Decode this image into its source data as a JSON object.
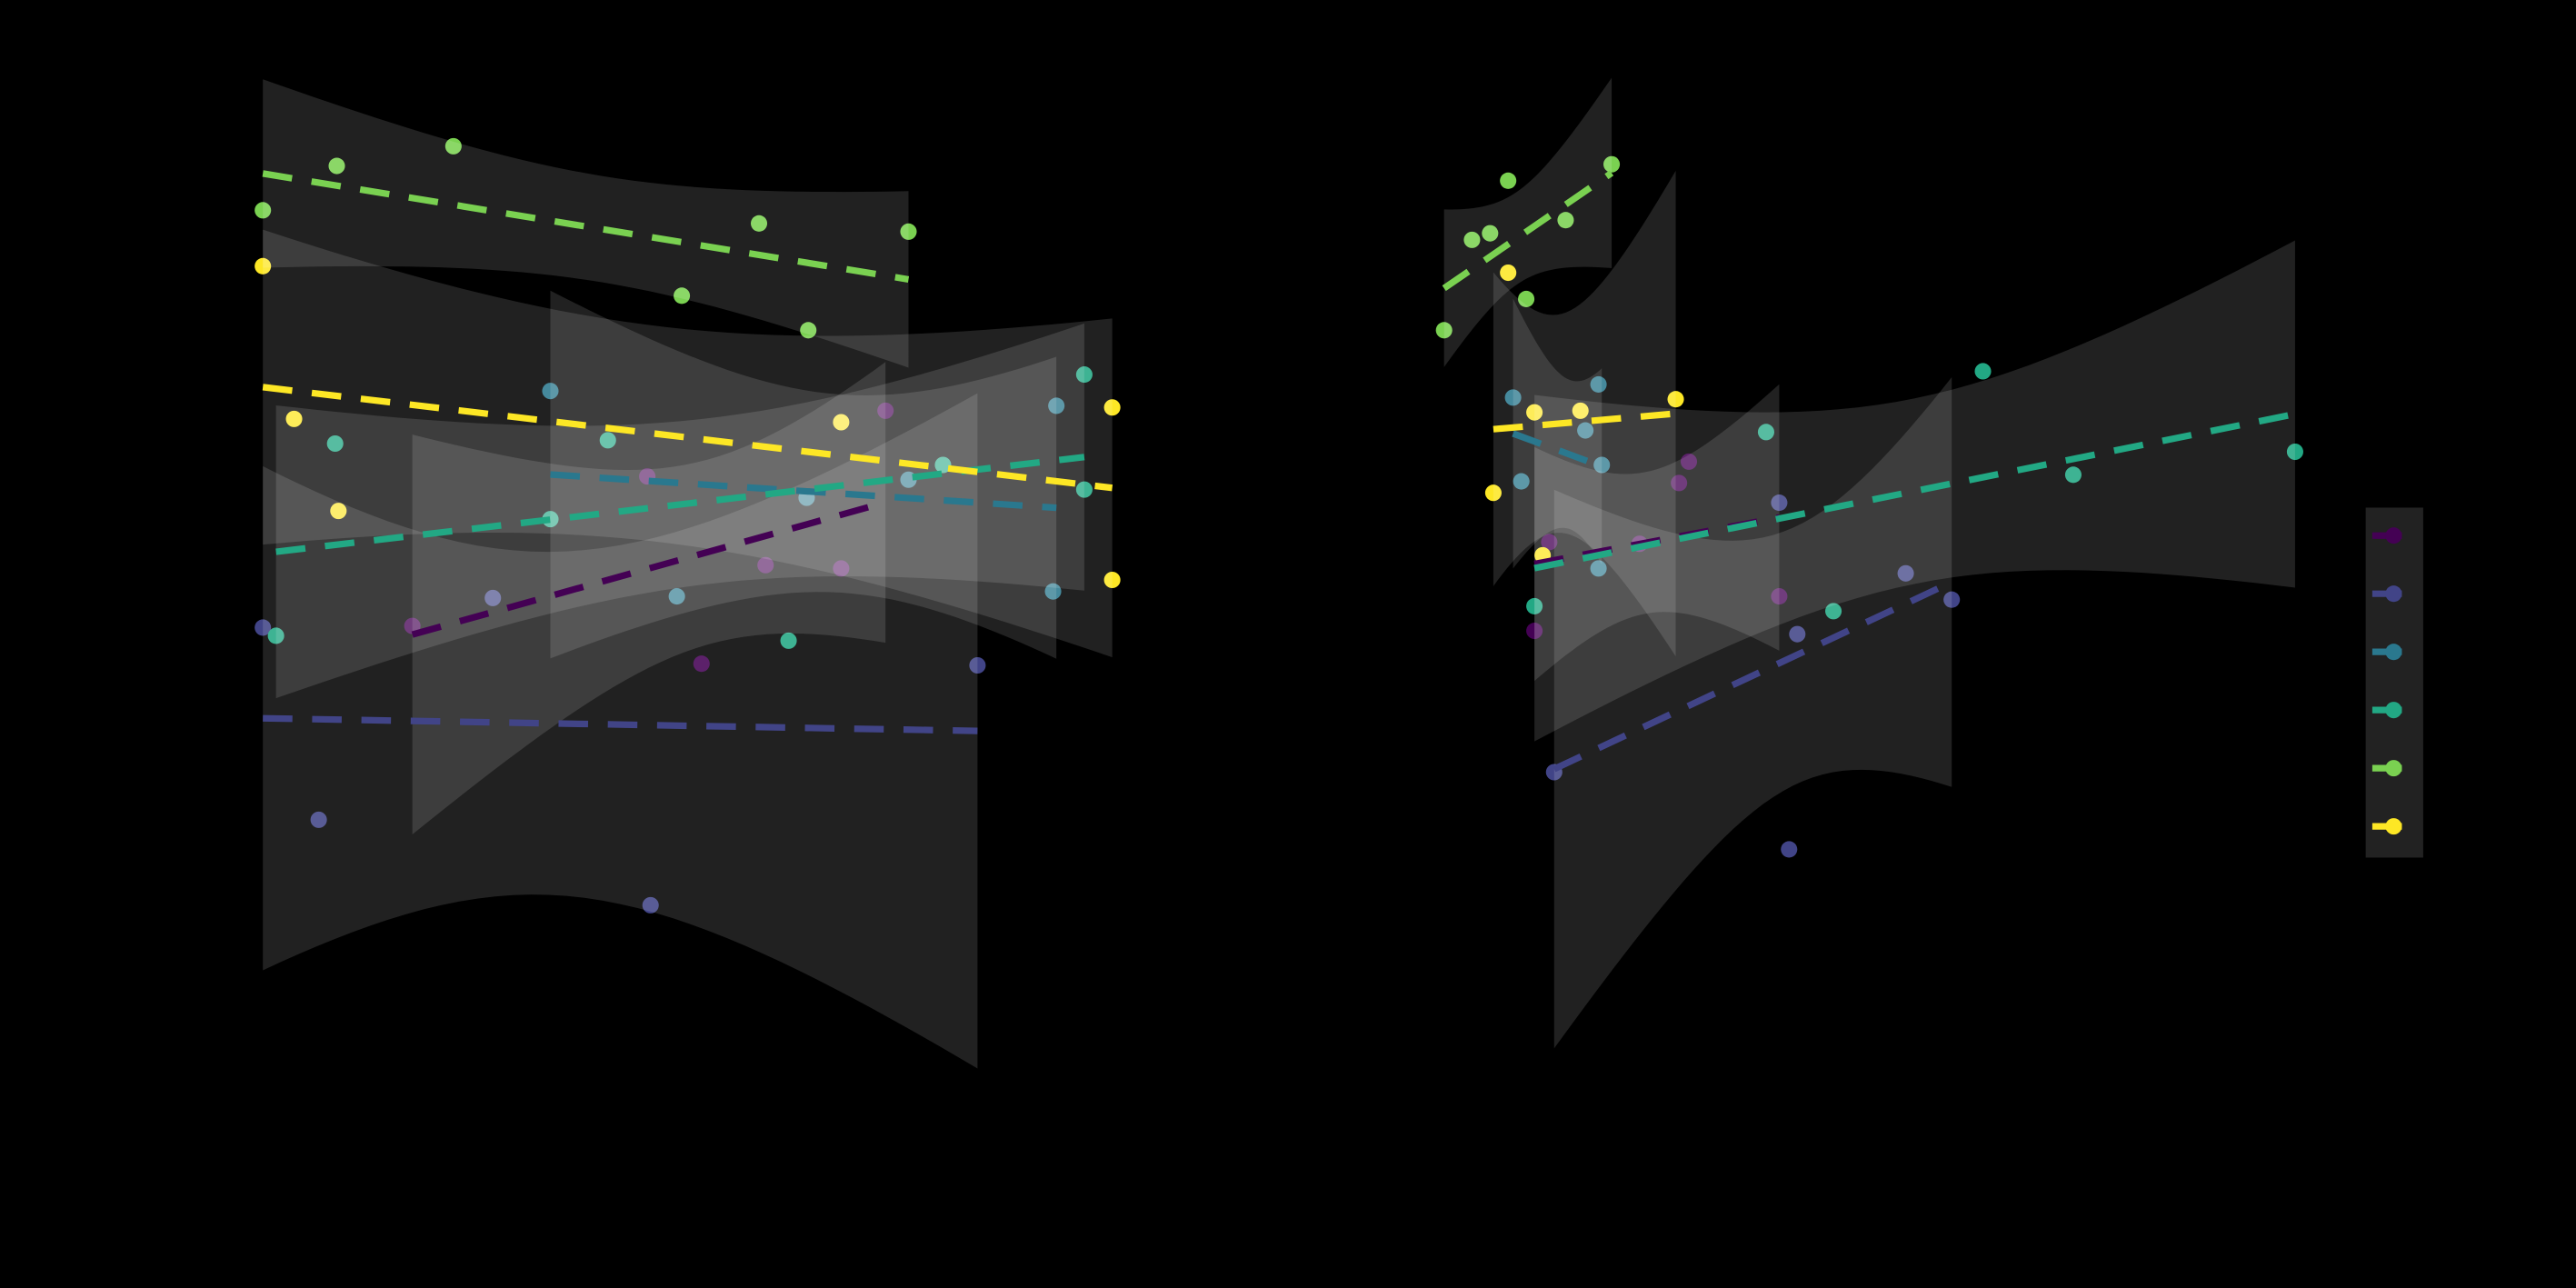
{
  "chart_data": [
    {
      "type": "scatter",
      "regression": true,
      "xlim": [
        0,
        540
      ],
      "ylim": [
        0,
        660
      ],
      "series": [
        {
          "color": "#440154",
          "x": [
            101,
            277,
            316,
            362,
            389,
            244
          ],
          "values": [
            309,
            286,
            346,
            344,
            440,
            400
          ]
        },
        {
          "color": "#414487",
          "x": [
            10,
            44,
            246,
            445,
            150
          ],
          "values": [
            308,
            191,
            139,
            285,
            326
          ]
        },
        {
          "color": "#2a788e",
          "x": [
            185,
            262,
            341,
            403,
            493,
            491
          ],
          "values": [
            452,
            327,
            387,
            398,
            443,
            330
          ]
        },
        {
          "color": "#22a884",
          "x": [
            18,
            54,
            220,
            330,
            424,
            510,
            510,
            185
          ],
          "values": [
            303,
            420,
            422,
            300,
            407,
            462,
            392,
            374
          ]
        },
        {
          "color": "#7ad151",
          "x": [
            10,
            55,
            126,
            265,
            312,
            342,
            403
          ],
          "values": [
            562,
            589,
            601,
            510,
            554,
            489,
            549
          ]
        },
        {
          "color": "#fde725",
          "x": [
            10,
            29,
            56,
            362,
            527,
            527
          ],
          "values": [
            528,
            435,
            379,
            433,
            442,
            337
          ]
        }
      ]
    },
    {
      "type": "scatter",
      "regression": true,
      "xlim": [
        0,
        560
      ],
      "ylim": [
        0,
        660
      ],
      "legend": "right",
      "series": [
        {
          "color": "#440154",
          "x": [
            74,
            83,
            138,
            162,
            168,
            223
          ],
          "values": [
            306,
            360,
            359,
            396,
            409,
            327
          ]
        },
        {
          "color": "#414487",
          "x": [
            86,
            223,
            229,
            234,
            300,
            328
          ],
          "values": [
            220,
            384,
            173,
            304,
            341,
            325
          ]
        },
        {
          "color": "#2a788e",
          "x": [
            61,
            66,
            105,
            113,
            115,
            113
          ],
          "values": [
            448,
            397,
            428,
            456,
            407,
            344
          ]
        },
        {
          "color": "#22a884",
          "x": [
            74,
            215,
            256,
            347,
            402,
            537
          ],
          "values": [
            321,
            427,
            318,
            464,
            401,
            415
          ]
        },
        {
          "color": "#7ad151",
          "x": [
            19,
            36,
            47,
            58,
            69,
            93,
            121
          ],
          "values": [
            489,
            544,
            548,
            580,
            508,
            556,
            590
          ]
        },
        {
          "color": "#fde725",
          "x": [
            49,
            58,
            74,
            79,
            102,
            160
          ],
          "values": [
            390,
            524,
            439,
            352,
            440,
            447
          ]
        }
      ]
    }
  ]
}
